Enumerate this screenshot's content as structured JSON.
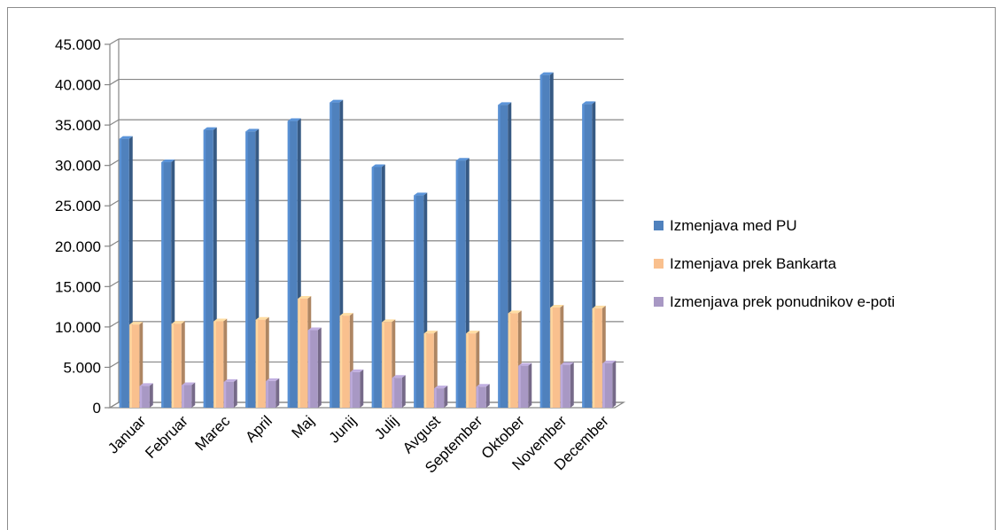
{
  "chart_data": {
    "type": "bar",
    "title": "",
    "xlabel": "",
    "ylabel": "",
    "ylim": [
      0,
      45000
    ],
    "y_ticks": [
      0,
      5000,
      10000,
      15000,
      20000,
      25000,
      30000,
      35000,
      40000,
      45000
    ],
    "y_tick_labels": [
      "0",
      "5.000",
      "10.000",
      "15.000",
      "20.000",
      "25.000",
      "30.000",
      "35.000",
      "40.000",
      "45.000"
    ],
    "grid": "horizontal",
    "legend_position": "right",
    "categories": [
      "Januar",
      "Februar",
      "Marec",
      "April",
      "Maj",
      "Junij",
      "Julij",
      "Avgust",
      "September",
      "Oktober",
      "November",
      "December"
    ],
    "series": [
      {
        "name": "Izmenjava med PU",
        "color": "#4F81BD",
        "values": [
          33300,
          30400,
          34400,
          34200,
          35500,
          37800,
          29800,
          26300,
          30600,
          37500,
          41200,
          37600
        ]
      },
      {
        "name": "Izmenjava prek Bankarta",
        "color": "#F9C08E",
        "values": [
          10300,
          10400,
          10700,
          10900,
          13500,
          11400,
          10600,
          9200,
          9200,
          11700,
          12400,
          12300
        ]
      },
      {
        "name": "Izmenjava prek ponudnikov e-poti",
        "color": "#A898C4",
        "values": [
          2700,
          2800,
          3200,
          3300,
          9600,
          4400,
          3700,
          2400,
          2600,
          5200,
          5300,
          5500
        ]
      }
    ]
  }
}
